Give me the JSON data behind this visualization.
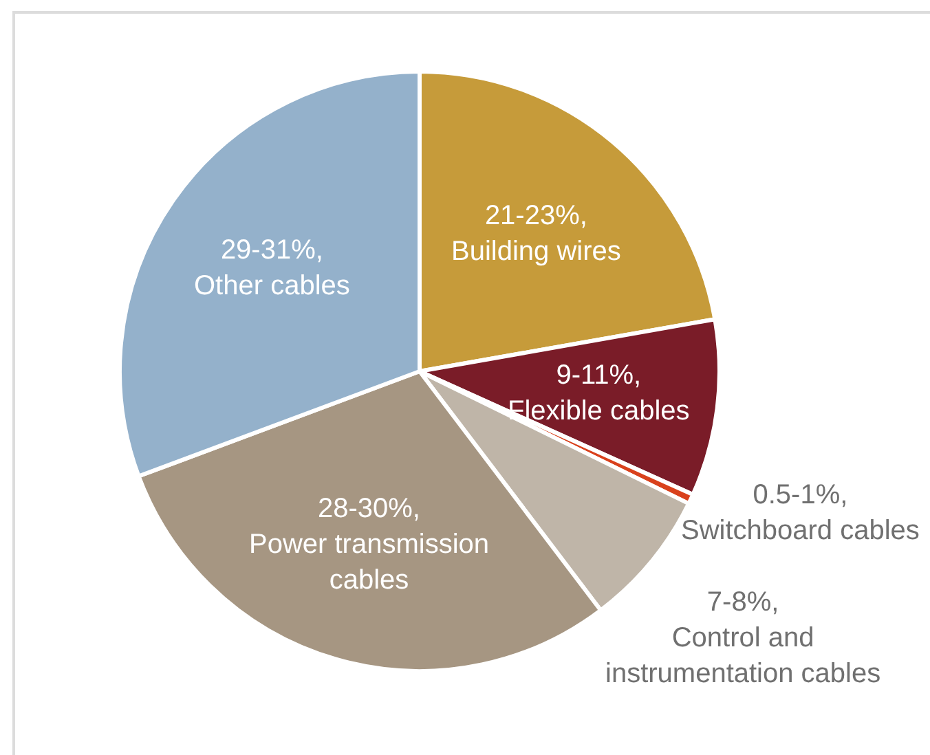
{
  "chart_data": {
    "type": "pie",
    "categories": [
      "Building wires",
      "Flexible cables",
      "Switchboard cables",
      "Control and instrumentation cables",
      "Power transmission cables",
      "Other cables"
    ],
    "values": [
      21,
      9,
      0.5,
      7,
      28,
      29
    ],
    "value_labels": [
      "21-23%,",
      "9-11%,",
      "0.5-1%,",
      "7-8%,",
      "28-30%,",
      "29-31%,"
    ],
    "colors": [
      "#c69b3a",
      "#7a1c28",
      "#d9411c",
      "#bfb5a8",
      "#a69682",
      "#94b1cb"
    ]
  }
}
